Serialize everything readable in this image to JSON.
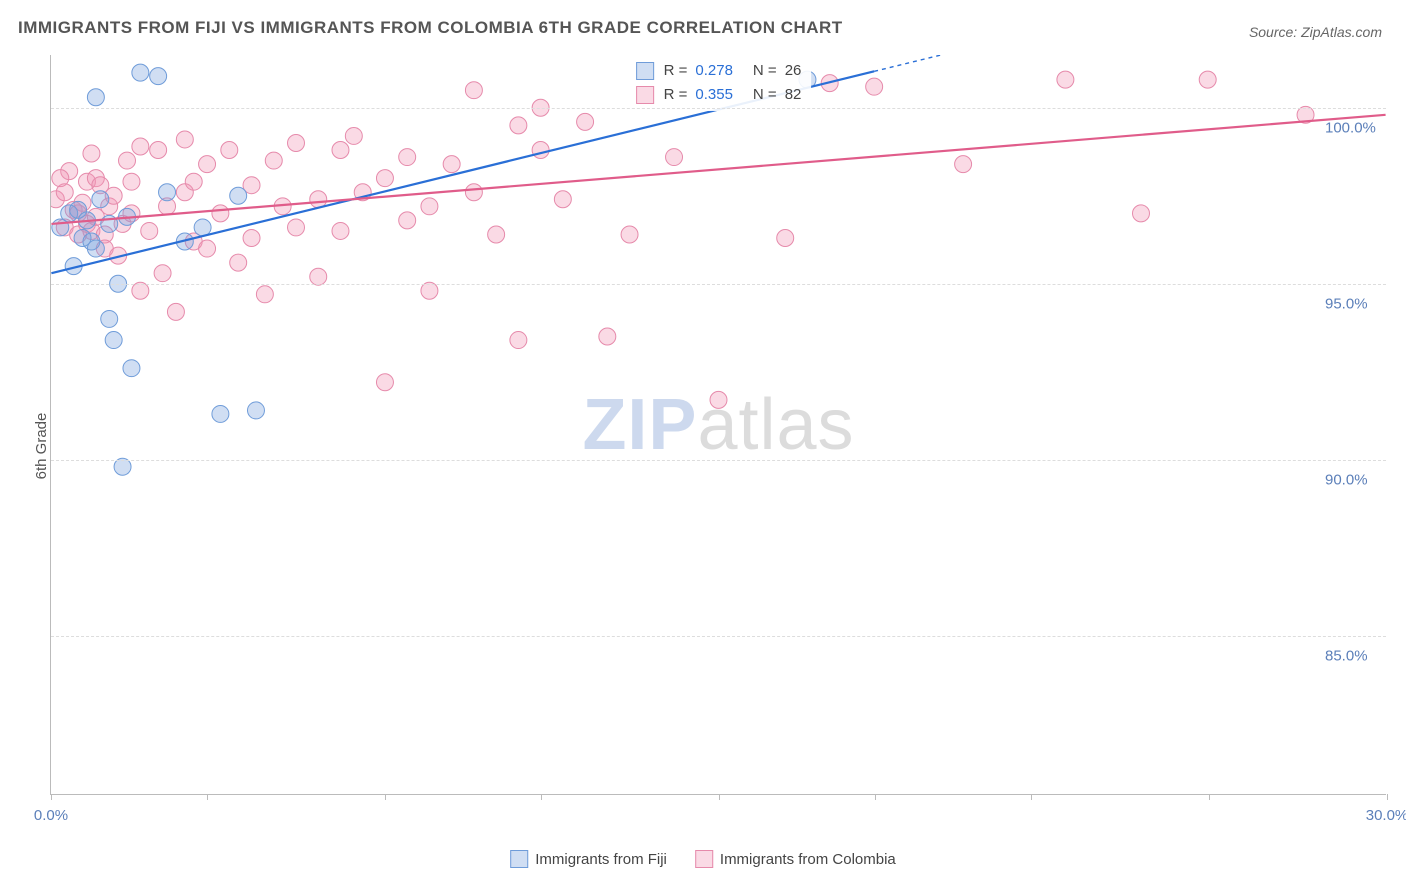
{
  "title": "IMMIGRANTS FROM FIJI VS IMMIGRANTS FROM COLOMBIA 6TH GRADE CORRELATION CHART",
  "source_prefix": "Source: ",
  "source_name": "ZipAtlas.com",
  "y_axis_label": "6th Grade",
  "watermark_a": "ZIP",
  "watermark_b": "atlas",
  "chart": {
    "type": "scatter",
    "xlim": [
      0,
      30
    ],
    "ylim": [
      80.5,
      101.5
    ],
    "x_ticks_major": [
      0,
      30
    ],
    "x_ticks_minor": [
      3.5,
      7.5,
      11,
      15,
      18.5,
      22,
      26
    ],
    "y_ticks": [
      85,
      90,
      95,
      100
    ],
    "y_tick_labels": [
      "85.0%",
      "90.0%",
      "95.0%",
      "100.0%"
    ],
    "x_tick_labels": [
      "0.0%",
      "30.0%"
    ],
    "background_color": "#ffffff",
    "grid_color": "#dddddd",
    "marker_radius": 8.5,
    "marker_stroke_width": 1,
    "line_width": 2.2,
    "series": [
      {
        "name": "Immigrants from Fiji",
        "color_fill": "rgba(120,160,220,0.35)",
        "color_stroke": "#6f9cd9",
        "line_color": "#2a6fd6",
        "R": "0.278",
        "N": "26",
        "trend": {
          "x0": 0,
          "y0": 95.3,
          "x1": 20,
          "y1": 101.5,
          "clip_x": 18.5
        },
        "points": [
          [
            0.2,
            96.6
          ],
          [
            0.4,
            97.0
          ],
          [
            0.5,
            95.5
          ],
          [
            0.6,
            97.1
          ],
          [
            0.7,
            96.3
          ],
          [
            0.8,
            96.8
          ],
          [
            0.9,
            96.2
          ],
          [
            1.0,
            96.0
          ],
          [
            1.1,
            97.4
          ],
          [
            1.3,
            96.7
          ],
          [
            1.3,
            94.0
          ],
          [
            1.4,
            93.4
          ],
          [
            1.5,
            95.0
          ],
          [
            1.6,
            89.8
          ],
          [
            1.8,
            92.6
          ],
          [
            2.0,
            101.0
          ],
          [
            2.4,
            100.9
          ],
          [
            2.6,
            97.6
          ],
          [
            3.4,
            96.6
          ],
          [
            3.8,
            91.3
          ],
          [
            4.2,
            97.5
          ],
          [
            4.6,
            91.4
          ],
          [
            3.0,
            96.2
          ],
          [
            1.0,
            100.3
          ],
          [
            17.0,
            100.8
          ],
          [
            1.7,
            96.9
          ]
        ]
      },
      {
        "name": "Immigrants from Colombia",
        "color_fill": "rgba(240,150,180,0.35)",
        "color_stroke": "#e68aab",
        "line_color": "#e05c8a",
        "R": "0.355",
        "N": "82",
        "trend": {
          "x0": 0,
          "y0": 96.7,
          "x1": 30,
          "y1": 99.8
        },
        "points": [
          [
            0.1,
            97.4
          ],
          [
            0.3,
            97.6
          ],
          [
            0.3,
            96.6
          ],
          [
            0.4,
            98.2
          ],
          [
            0.5,
            97.1
          ],
          [
            0.6,
            96.4
          ],
          [
            0.6,
            97.0
          ],
          [
            0.7,
            97.3
          ],
          [
            0.8,
            96.7
          ],
          [
            0.8,
            97.9
          ],
          [
            0.9,
            96.5
          ],
          [
            0.9,
            98.7
          ],
          [
            1.0,
            96.9
          ],
          [
            1.0,
            98.0
          ],
          [
            1.1,
            97.8
          ],
          [
            1.2,
            96.4
          ],
          [
            1.2,
            96.0
          ],
          [
            1.3,
            97.2
          ],
          [
            1.4,
            97.5
          ],
          [
            1.5,
            95.8
          ],
          [
            1.6,
            96.7
          ],
          [
            1.7,
            98.5
          ],
          [
            1.8,
            97.0
          ],
          [
            2.0,
            98.9
          ],
          [
            2.0,
            94.8
          ],
          [
            2.2,
            96.5
          ],
          [
            2.4,
            98.8
          ],
          [
            2.6,
            97.2
          ],
          [
            2.8,
            94.2
          ],
          [
            3.0,
            97.6
          ],
          [
            3.0,
            99.1
          ],
          [
            3.2,
            97.9
          ],
          [
            3.2,
            96.2
          ],
          [
            3.5,
            98.4
          ],
          [
            3.5,
            96.0
          ],
          [
            3.8,
            97.0
          ],
          [
            4.0,
            98.8
          ],
          [
            4.2,
            95.6
          ],
          [
            4.5,
            97.8
          ],
          [
            4.5,
            96.3
          ],
          [
            4.8,
            94.7
          ],
          [
            5.0,
            98.5
          ],
          [
            5.2,
            97.2
          ],
          [
            5.5,
            96.6
          ],
          [
            5.5,
            99.0
          ],
          [
            6.0,
            97.4
          ],
          [
            6.0,
            95.2
          ],
          [
            6.5,
            98.8
          ],
          [
            6.5,
            96.5
          ],
          [
            7.0,
            97.6
          ],
          [
            7.5,
            92.2
          ],
          [
            7.5,
            98.0
          ],
          [
            8.0,
            96.8
          ],
          [
            8.0,
            98.6
          ],
          [
            8.5,
            97.2
          ],
          [
            8.5,
            94.8
          ],
          [
            9.0,
            98.4
          ],
          [
            9.5,
            100.5
          ],
          [
            9.5,
            97.6
          ],
          [
            10.0,
            96.4
          ],
          [
            10.5,
            93.4
          ],
          [
            10.5,
            99.5
          ],
          [
            11.0,
            98.8
          ],
          [
            11.0,
            100.0
          ],
          [
            11.5,
            97.4
          ],
          [
            12.0,
            99.6
          ],
          [
            12.5,
            93.5
          ],
          [
            13.0,
            96.4
          ],
          [
            14.0,
            98.6
          ],
          [
            15.0,
            91.7
          ],
          [
            16.5,
            96.3
          ],
          [
            17.5,
            100.7
          ],
          [
            18.5,
            100.6
          ],
          [
            20.5,
            98.4
          ],
          [
            22.8,
            100.8
          ],
          [
            24.5,
            97.0
          ],
          [
            26.0,
            100.8
          ],
          [
            28.2,
            99.8
          ],
          [
            1.8,
            97.9
          ],
          [
            2.5,
            95.3
          ],
          [
            6.8,
            99.2
          ],
          [
            0.2,
            98.0
          ]
        ]
      }
    ]
  },
  "bottom_legend": [
    {
      "label": "Immigrants from Fiji",
      "fill": "rgba(120,160,220,0.35)",
      "stroke": "#6f9cd9"
    },
    {
      "label": "Immigrants from Colombia",
      "fill": "rgba(240,150,180,0.35)",
      "stroke": "#e68aab"
    }
  ]
}
